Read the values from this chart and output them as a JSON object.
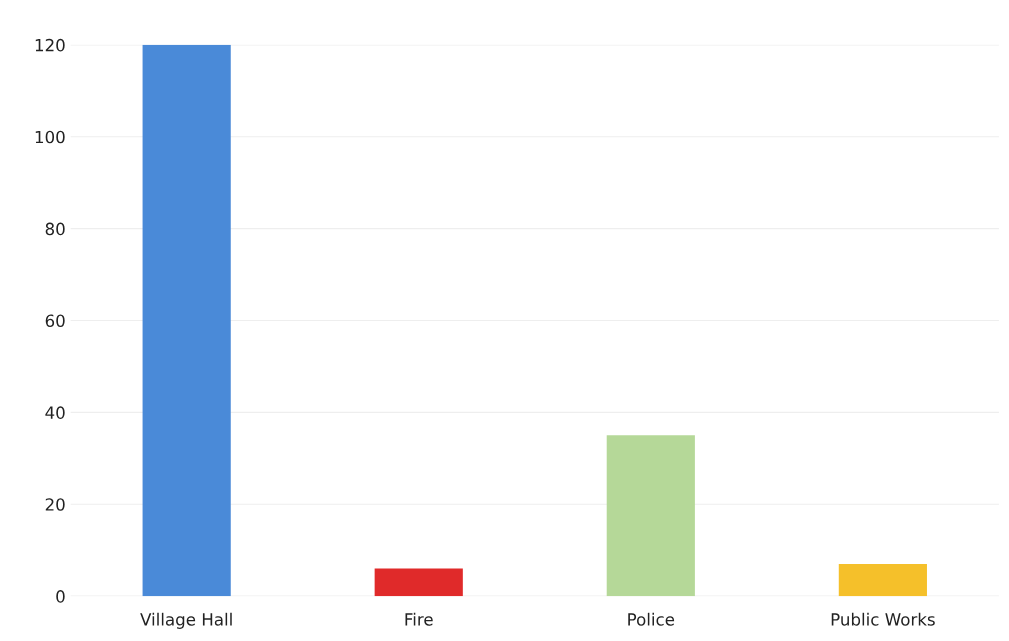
{
  "chart_data": {
    "type": "bar",
    "categories": [
      "Village Hall",
      "Fire",
      "Police",
      "Public Works"
    ],
    "values": [
      120,
      6,
      35,
      7
    ],
    "colors": [
      "#4a8ad8",
      "#e02a2a",
      "#b5d898",
      "#f5c02a"
    ],
    "ylim": [
      0,
      120
    ],
    "yticks": [
      0,
      20,
      40,
      60,
      80,
      100,
      120
    ],
    "grid": "y"
  }
}
